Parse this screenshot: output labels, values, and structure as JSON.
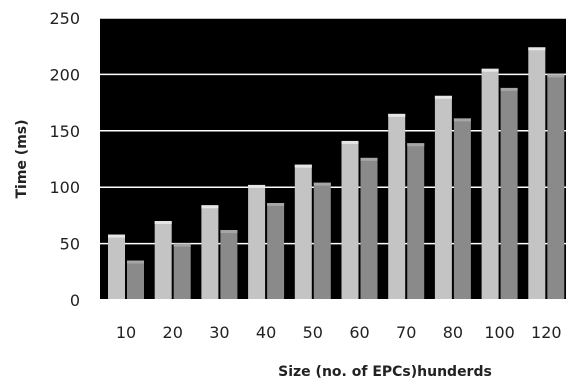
{
  "chart_data": {
    "type": "bar",
    "title": "",
    "xlabel": "Size (no. of EPCs)hunderds",
    "ylabel": "Time (ms)",
    "categories": [
      "10",
      "20",
      "30",
      "40",
      "50",
      "60",
      "70",
      "80",
      "100",
      "120"
    ],
    "series": [
      {
        "values": [
          58,
          70,
          84,
          102,
          120,
          141,
          165,
          181,
          205,
          224
        ]
      },
      {
        "values": [
          35,
          50,
          62,
          86,
          104,
          126,
          139,
          161,
          188,
          200
        ]
      }
    ],
    "ylim": [
      0,
      250
    ],
    "yticks": [
      "0",
      "50",
      "100",
      "150",
      "200",
      "250"
    ],
    "grid": true,
    "legend": "none",
    "colors": {
      "plot_background": "#000000",
      "gridline": "#ffffff",
      "series": [
        "#c4c4c4",
        "#8a8a8a"
      ]
    }
  }
}
